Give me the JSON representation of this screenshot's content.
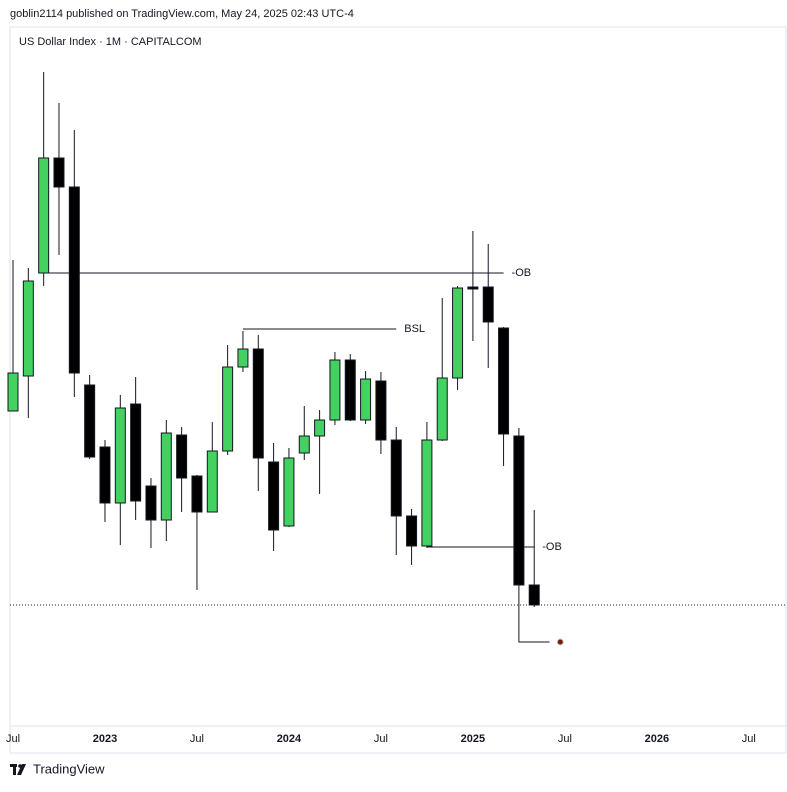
{
  "header": {
    "publisher": "goblin2114 published on TradingView.com, May 24, 2025 02:43 UTC-4",
    "symbol": "US Dollar Index · 1M · CAPITALCOM"
  },
  "footer": {
    "brand": "TradingView"
  },
  "chart_data": {
    "type": "candlestick",
    "categories": [
      "Jul",
      null,
      null,
      null,
      null,
      null,
      "2023",
      null,
      null,
      null,
      null,
      null,
      "Jul",
      null,
      null,
      null,
      null,
      null,
      "2024",
      null,
      null,
      null,
      null,
      null,
      "Jul",
      null,
      null,
      null,
      null,
      null,
      "2025",
      null,
      null,
      null,
      null,
      null,
      "Jul",
      null,
      null,
      null,
      null,
      null,
      "2026",
      null,
      null,
      null,
      null,
      null,
      "Jul"
    ],
    "open": [
      104.67,
      105.72,
      108.81,
      112.26,
      111.39,
      105.45,
      103.59,
      101.91,
      104.88,
      102.42,
      101.4,
      103.95,
      102.72,
      101.64,
      103.47,
      105.99,
      106.53,
      103.14,
      101.22,
      103.41,
      103.92,
      104.4,
      106.2,
      104.4,
      105.57,
      103.8,
      101.52,
      100.62,
      103.8,
      105.66,
      108.39,
      108.39,
      107.16,
      103.92,
      99.45,
      null,
      null,
      null,
      null,
      null,
      null,
      null,
      null,
      null,
      null,
      null,
      null,
      null,
      null
    ],
    "high": [
      109.2,
      108.96,
      114.84,
      113.91,
      113.1,
      105.75,
      103.8,
      105.15,
      105.69,
      102.66,
      104.4,
      104.19,
      102.75,
      104.34,
      106.65,
      107.07,
      106.95,
      103.71,
      103.56,
      104.82,
      104.7,
      106.44,
      106.38,
      105.87,
      105.84,
      104.19,
      101.73,
      104.34,
      108.06,
      108.42,
      110.07,
      109.68,
      107.19,
      104.16,
      101.7,
      null,
      null,
      null,
      null,
      null,
      null,
      null,
      null,
      null,
      null,
      null,
      null,
      null,
      null
    ],
    "low": [
      104.67,
      104.46,
      108.42,
      109.35,
      105.09,
      103.23,
      101.34,
      100.65,
      101.4,
      100.56,
      100.77,
      101.64,
      99.3,
      101.64,
      103.35,
      105.84,
      102.27,
      100.47,
      101.19,
      103.2,
      102.18,
      104.25,
      104.37,
      104.28,
      103.38,
      100.35,
      100.05,
      100.56,
      103.77,
      105.3,
      106.77,
      105.96,
      103.02,
      99.42,
      98.79,
      null,
      null,
      null,
      null,
      null,
      null,
      null,
      null,
      null,
      null,
      null,
      null,
      null,
      null
    ],
    "close": [
      105.81,
      108.57,
      112.26,
      111.39,
      105.81,
      103.29,
      101.91,
      104.76,
      101.97,
      101.4,
      104.01,
      102.66,
      101.64,
      103.47,
      105.99,
      106.53,
      103.26,
      101.1,
      103.26,
      103.92,
      104.4,
      106.2,
      104.4,
      105.63,
      103.8,
      101.52,
      100.62,
      103.8,
      105.66,
      108.36,
      108.33,
      107.34,
      103.98,
      99.45,
      98.85,
      null,
      null,
      null,
      null,
      null,
      null,
      null,
      null,
      null,
      null,
      null,
      null,
      null,
      null
    ],
    "up_color": "#43d160",
    "down_color": "#000000",
    "ylim": [
      95.25,
      115.2
    ],
    "last_price": 98.85,
    "annotations": [
      {
        "label": "-OB",
        "value": 108.81,
        "x0": 2,
        "x1": 32
      },
      {
        "label": "BSL",
        "value": 107.13,
        "x0": 15,
        "x1": 25
      },
      {
        "label": "-OB",
        "value": 100.59,
        "x0": 27,
        "x1": 34
      }
    ],
    "target": {
      "value": 97.74,
      "x0": 33,
      "x1": 35
    }
  }
}
